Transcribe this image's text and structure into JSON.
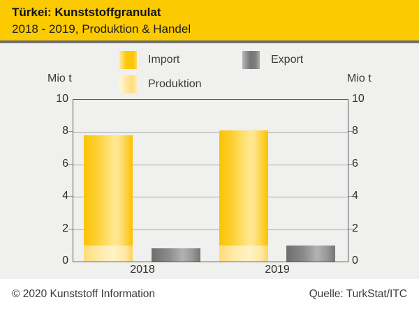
{
  "header": {
    "title": "Türkei: Kunststoffgranulat",
    "subtitle": "2018 - 2019, Produktion & Handel"
  },
  "legend": {
    "items": [
      {
        "label": "Import",
        "color": "#fcc800"
      },
      {
        "label": "Export",
        "color": "#8f8f8f"
      },
      {
        "label": "Produktion",
        "color": "#ffecaa"
      }
    ]
  },
  "axis": {
    "unit": "Mio t"
  },
  "chart_data": {
    "type": "bar",
    "title": "Türkei: Kunststoffgranulat, 2018 - 2019, Produktion & Handel",
    "categories": [
      "2018",
      "2019"
    ],
    "series": [
      {
        "name": "Produktion",
        "values": [
          1.0,
          1.0
        ],
        "stack": "supply",
        "color": "#ffecaa"
      },
      {
        "name": "Import",
        "values": [
          6.8,
          7.1
        ],
        "stack": "supply",
        "color": "#fcc800"
      },
      {
        "name": "Export",
        "values": [
          0.8,
          1.0
        ],
        "stack": null,
        "color": "#8f8f8f"
      }
    ],
    "stack_totals": [
      7.8,
      8.1
    ],
    "ylabel": "Mio t",
    "ylim": [
      0,
      10
    ],
    "yticks": [
      0,
      2,
      4,
      6,
      8,
      10
    ],
    "gridline_values": [
      2,
      4,
      6,
      8
    ],
    "grid": true,
    "legend_position": "top"
  },
  "colors": {
    "header_background": "#fcca00",
    "chart_background": "#f0f0ee",
    "frame": "#53545a",
    "gridline": "#a9a9a9",
    "rule": "#6f6f6f"
  },
  "footer": {
    "copyright": "© 2020 Kunststoff Information",
    "source": "Quelle: TurkStat/ITC"
  }
}
